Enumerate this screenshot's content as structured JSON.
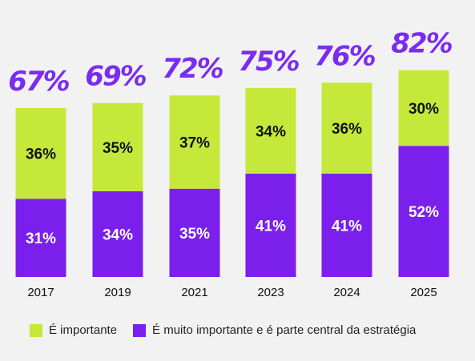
{
  "colors": {
    "important": "#c6e83a",
    "very_important": "#7a1fec",
    "total_label": "#7a2cf0",
    "text_on_important": "#111111",
    "text_on_very_important": "#ffffff"
  },
  "chart_data": {
    "type": "bar",
    "stacked": true,
    "categories": [
      "2017",
      "2019",
      "2021",
      "2023",
      "2024",
      "2025"
    ],
    "series": [
      {
        "name": "É muito importante e é parte central da estratégia",
        "values": [
          31,
          34,
          35,
          41,
          41,
          52
        ],
        "labels": [
          "31%",
          "34%",
          "35%",
          "41%",
          "41%",
          "52%"
        ]
      },
      {
        "name": "É importante",
        "values": [
          36,
          35,
          37,
          34,
          36,
          30
        ],
        "labels": [
          "36%",
          "35%",
          "37%",
          "34%",
          "36%",
          "30%"
        ]
      }
    ],
    "totals": [
      67,
      69,
      72,
      75,
      76,
      82
    ],
    "total_labels": [
      "67%",
      "69%",
      "72%",
      "75%",
      "76%",
      "82%"
    ],
    "ylim": [
      0,
      100
    ],
    "grid": false
  },
  "legend": {
    "important": "É importante",
    "very_important": "É muito importante e é parte central da estratégia"
  }
}
